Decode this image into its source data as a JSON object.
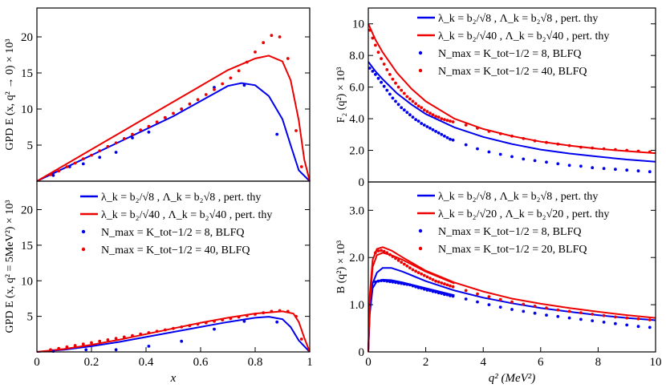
{
  "chart_data": [
    {
      "type": "line",
      "ylabel": "GPD E (x, q² → 0) × 10³",
      "xlabel": "",
      "xlim": [
        0,
        1
      ],
      "ylim": [
        0,
        24
      ],
      "yticks": [
        5,
        10,
        15,
        20
      ],
      "xticks": [],
      "series": [
        {
          "kind": "line",
          "color": "#0000ee",
          "x": [
            0,
            0.1,
            0.2,
            0.3,
            0.4,
            0.5,
            0.6,
            0.7,
            0.75,
            0.8,
            0.85,
            0.9,
            0.93,
            0.96,
            1.0
          ],
          "y": [
            0,
            1.8,
            3.6,
            5.4,
            7.2,
            9.0,
            11.1,
            13.2,
            13.6,
            13.3,
            11.8,
            8.6,
            5.0,
            1.5,
            0
          ]
        },
        {
          "kind": "line",
          "color": "#ee0000",
          "x": [
            0,
            0.1,
            0.2,
            0.3,
            0.4,
            0.5,
            0.6,
            0.7,
            0.8,
            0.85,
            0.9,
            0.93,
            0.96,
            0.98,
            1.0
          ],
          "y": [
            0,
            2.2,
            4.4,
            6.6,
            8.8,
            11.0,
            13.2,
            15.4,
            17.0,
            17.4,
            16.6,
            14.0,
            8.4,
            3.0,
            0
          ]
        },
        {
          "kind": "points",
          "color": "#0000ee",
          "x": [
            0.06,
            0.12,
            0.17,
            0.23,
            0.29,
            0.35,
            0.41,
            0.47,
            0.53,
            0.65,
            0.76,
            0.88
          ],
          "y": [
            0.8,
            2.0,
            2.4,
            3.3,
            4.0,
            6.0,
            6.8,
            8.8,
            10.0,
            13.0,
            13.3,
            6.5
          ]
        },
        {
          "kind": "points",
          "color": "#ee0000",
          "x": [
            0.05,
            0.08,
            0.11,
            0.14,
            0.17,
            0.2,
            0.23,
            0.26,
            0.29,
            0.32,
            0.35,
            0.38,
            0.41,
            0.44,
            0.47,
            0.5,
            0.53,
            0.56,
            0.59,
            0.62,
            0.65,
            0.68,
            0.71,
            0.74,
            0.77,
            0.8,
            0.83,
            0.86,
            0.89,
            0.92,
            0.95,
            0.97
          ],
          "y": [
            0.9,
            1.4,
            2.0,
            2.5,
            3.1,
            3.6,
            4.2,
            4.8,
            5.3,
            5.9,
            6.5,
            7.1,
            7.6,
            8.2,
            8.8,
            9.4,
            10.0,
            10.7,
            11.3,
            12.0,
            12.7,
            13.5,
            14.3,
            15.3,
            16.5,
            17.9,
            19.2,
            20.2,
            20.0,
            17.0,
            7.0,
            2.0
          ]
        }
      ]
    },
    {
      "type": "line",
      "ylabel": "GPD E (x, q² = 5MeV²) × 10³",
      "xlabel": "x",
      "xlim": [
        0,
        1
      ],
      "ylim": [
        0,
        24
      ],
      "yticks": [
        5,
        10,
        15,
        20
      ],
      "xticks": [
        "0",
        "0.2",
        "0.4",
        "0.6",
        "0.8",
        "1"
      ],
      "legend": [
        {
          "label": "λ_k = b₂/√8 , Λ_k = b₂√8 , pert. thy",
          "color": "#0000ee",
          "marker": "line"
        },
        {
          "label": "λ_k = b₂/√40 , Λ_k = b₂√40 , pert. thy",
          "color": "#ee0000",
          "marker": "line"
        },
        {
          "label": "N_max = K_tot−1/2 = 8, BLFQ",
          "color": "#0000ee",
          "marker": "dot"
        },
        {
          "label": "N_max = K_tot−1/2 = 40, BLFQ",
          "color": "#ee0000",
          "marker": "dot"
        }
      ],
      "series": [
        {
          "kind": "line",
          "color": "#0000ee",
          "x": [
            0,
            0.1,
            0.2,
            0.3,
            0.4,
            0.5,
            0.6,
            0.7,
            0.8,
            0.85,
            0.9,
            0.93,
            0.96,
            1.0
          ],
          "y": [
            0,
            0.3,
            0.8,
            1.4,
            2.1,
            2.8,
            3.5,
            4.2,
            4.8,
            4.95,
            4.6,
            3.5,
            1.6,
            0
          ]
        },
        {
          "kind": "line",
          "color": "#ee0000",
          "x": [
            0,
            0.1,
            0.2,
            0.3,
            0.4,
            0.5,
            0.6,
            0.7,
            0.8,
            0.9,
            0.94,
            0.96,
            0.98,
            1.0
          ],
          "y": [
            0,
            0.4,
            1.0,
            1.7,
            2.5,
            3.3,
            4.1,
            4.8,
            5.4,
            5.7,
            5.4,
            4.2,
            2.0,
            0
          ]
        },
        {
          "kind": "points",
          "color": "#0000ee",
          "x": [
            0.06,
            0.18,
            0.29,
            0.41,
            0.53,
            0.65,
            0.76,
            0.88
          ],
          "y": [
            0.1,
            0.3,
            0.3,
            0.8,
            1.5,
            3.2,
            4.3,
            4.2
          ]
        },
        {
          "kind": "points",
          "color": "#ee0000",
          "x": [
            0.05,
            0.08,
            0.11,
            0.14,
            0.17,
            0.2,
            0.23,
            0.26,
            0.29,
            0.32,
            0.35,
            0.38,
            0.41,
            0.44,
            0.47,
            0.5,
            0.53,
            0.56,
            0.59,
            0.62,
            0.65,
            0.68,
            0.71,
            0.74,
            0.77,
            0.8,
            0.83,
            0.86,
            0.89,
            0.92,
            0.95,
            0.97
          ],
          "y": [
            0.3,
            0.5,
            0.7,
            0.9,
            1.1,
            1.3,
            1.5,
            1.7,
            1.9,
            2.1,
            2.3,
            2.5,
            2.7,
            2.9,
            3.1,
            3.3,
            3.5,
            3.7,
            3.9,
            4.1,
            4.3,
            4.5,
            4.7,
            4.9,
            5.1,
            5.3,
            5.5,
            5.7,
            5.8,
            5.7,
            5.0,
            1.8
          ]
        }
      ]
    },
    {
      "type": "line",
      "ylabel": "F₂ (q²) × 10³",
      "xlabel": "",
      "xlim": [
        0,
        10
      ],
      "ylim": [
        0,
        11
      ],
      "yticks": [
        "0",
        "2.0",
        "4.0",
        "6.0",
        "8.0",
        "10"
      ],
      "xticks": [],
      "legend": [
        {
          "label": "λ_k = b₂/√8 , Λ_k = b₂√8 , pert. thy",
          "color": "#0000ee",
          "marker": "line"
        },
        {
          "label": "λ_k = b₂/√40 , Λ_k = b₂√40 , pert. thy",
          "color": "#ee0000",
          "marker": "line"
        },
        {
          "label": "N_max = K_tot−1/2 = 8, BLFQ",
          "color": "#0000ee",
          "marker": "dot"
        },
        {
          "label": "N_max = K_tot−1/2 = 40, BLFQ",
          "color": "#ee0000",
          "marker": "dot"
        }
      ],
      "series": [
        {
          "kind": "line",
          "color": "#0000ee",
          "x": [
            0,
            0.25,
            0.5,
            1,
            1.5,
            2,
            3,
            4,
            5,
            6,
            7,
            8,
            9,
            10
          ],
          "y": [
            7.6,
            7.0,
            6.5,
            5.6,
            4.9,
            4.3,
            3.45,
            2.85,
            2.4,
            2.05,
            1.8,
            1.6,
            1.42,
            1.28
          ]
        },
        {
          "kind": "line",
          "color": "#ee0000",
          "x": [
            0,
            0.25,
            0.5,
            1,
            1.5,
            2,
            3,
            4,
            5,
            6,
            7,
            8,
            9,
            10
          ],
          "y": [
            10.0,
            9.0,
            8.2,
            6.9,
            5.9,
            5.1,
            4.0,
            3.35,
            2.9,
            2.55,
            2.3,
            2.1,
            1.95,
            1.82
          ]
        },
        {
          "kind": "points",
          "color": "#0000ee",
          "x": [
            0.05,
            0.15,
            0.25,
            0.35,
            0.45,
            0.55,
            0.65,
            0.75,
            0.85,
            0.95,
            1.05,
            1.15,
            1.25,
            1.35,
            1.45,
            1.55,
            1.65,
            1.75,
            1.85,
            1.95,
            2.05,
            2.15,
            2.25,
            2.35,
            2.45,
            2.55,
            2.65,
            2.75,
            2.85,
            2.95,
            3.4,
            3.8,
            4.2,
            4.6,
            5.0,
            5.4,
            5.8,
            6.2,
            6.6,
            7.0,
            7.4,
            7.8,
            8.2,
            8.6,
            9.0,
            9.4,
            9.8
          ],
          "y": [
            7.2,
            7.0,
            6.8,
            6.55,
            6.3,
            6.05,
            5.8,
            5.55,
            5.3,
            5.1,
            4.9,
            4.7,
            4.55,
            4.4,
            4.25,
            4.1,
            3.95,
            3.85,
            3.7,
            3.6,
            3.5,
            3.4,
            3.3,
            3.2,
            3.1,
            3.0,
            2.9,
            2.8,
            2.7,
            2.65,
            2.35,
            2.1,
            1.9,
            1.75,
            1.6,
            1.45,
            1.35,
            1.25,
            1.15,
            1.05,
            1.0,
            0.9,
            0.85,
            0.8,
            0.75,
            0.7,
            0.65
          ]
        },
        {
          "kind": "points",
          "color": "#ee0000",
          "x": [
            0.05,
            0.15,
            0.25,
            0.35,
            0.45,
            0.55,
            0.65,
            0.75,
            0.85,
            0.95,
            1.05,
            1.15,
            1.25,
            1.35,
            1.45,
            1.55,
            1.65,
            1.75,
            1.85,
            1.95,
            2.05,
            2.15,
            2.25,
            2.35,
            2.45,
            2.55,
            2.65,
            2.75,
            2.85,
            2.95,
            3.4,
            3.8,
            4.2,
            4.6,
            5.0,
            5.4,
            5.8,
            6.2,
            6.6,
            7.0,
            7.4,
            7.8,
            8.2,
            8.6,
            9.0,
            9.4,
            9.8
          ],
          "y": [
            9.6,
            9.1,
            8.65,
            8.2,
            7.8,
            7.45,
            7.1,
            6.8,
            6.5,
            6.25,
            6.0,
            5.8,
            5.6,
            5.4,
            5.25,
            5.1,
            4.95,
            4.8,
            4.7,
            4.55,
            4.45,
            4.35,
            4.25,
            4.15,
            4.1,
            4.0,
            3.95,
            3.9,
            3.85,
            3.8,
            3.6,
            3.4,
            3.2,
            3.05,
            2.9,
            2.75,
            2.6,
            2.5,
            2.4,
            2.3,
            2.2,
            2.15,
            2.1,
            2.05,
            2.0,
            1.95,
            1.9
          ]
        }
      ]
    },
    {
      "type": "line",
      "ylabel": "B (q²) × 10³",
      "xlabel": "q² (MeV²)",
      "xlim": [
        0,
        10
      ],
      "ylim": [
        0,
        3.6
      ],
      "yticks": [
        "0",
        "1.0",
        "2.0",
        "3.0"
      ],
      "xticks": [
        "0",
        "2",
        "4",
        "6",
        "8",
        "10"
      ],
      "legend": [
        {
          "label": "λ_k = b₂/√8 , Λ_k = b₂√8 , pert. thy",
          "color": "#0000ee",
          "marker": "line"
        },
        {
          "label": "λ_k = b₂/√20 , Λ_k = b₂√20 , pert. thy",
          "color": "#ee0000",
          "marker": "line"
        },
        {
          "label": "N_max = K_tot−1/2 = 8, BLFQ",
          "color": "#0000ee",
          "marker": "dot"
        },
        {
          "label": "N_max = K_tot−1/2 = 20, BLFQ",
          "color": "#ee0000",
          "marker": "dot"
        }
      ],
      "series": [
        {
          "kind": "line",
          "color": "#0000ee",
          "x": [
            0,
            0.05,
            0.15,
            0.3,
            0.5,
            0.8,
            1.2,
            2,
            3,
            4,
            5,
            6,
            7,
            8,
            9,
            10
          ],
          "y": [
            0,
            0.9,
            1.45,
            1.68,
            1.78,
            1.78,
            1.7,
            1.5,
            1.3,
            1.15,
            1.03,
            0.93,
            0.85,
            0.78,
            0.72,
            0.67
          ]
        },
        {
          "kind": "line",
          "color": "#ee0000",
          "x": [
            0,
            0.05,
            0.15,
            0.3,
            0.5,
            0.8,
            1.2,
            2,
            3,
            4,
            5,
            6,
            7,
            8,
            9,
            10
          ],
          "y": [
            0,
            1.2,
            1.95,
            2.18,
            2.22,
            2.15,
            2.0,
            1.72,
            1.47,
            1.28,
            1.13,
            1.02,
            0.93,
            0.85,
            0.78,
            0.72
          ]
        },
        {
          "kind": "line",
          "color": "#0000ee",
          "x": [
            0,
            0.05,
            0.15,
            0.3,
            0.5,
            0.8,
            1.2,
            2,
            3
          ],
          "y": [
            0,
            0.8,
            1.35,
            1.5,
            1.53,
            1.52,
            1.47,
            1.35,
            1.2
          ]
        },
        {
          "kind": "line",
          "color": "#ee0000",
          "x": [
            0,
            0.05,
            0.15,
            0.3,
            0.5,
            0.8,
            1.2,
            2,
            3
          ],
          "y": [
            0,
            1.0,
            1.8,
            2.05,
            2.1,
            2.05,
            1.95,
            1.7,
            1.45
          ]
        },
        {
          "kind": "points",
          "color": "#0000ee",
          "x": [
            0.25,
            0.35,
            0.45,
            0.55,
            0.65,
            0.75,
            0.85,
            0.95,
            1.05,
            1.15,
            1.25,
            1.35,
            1.45,
            1.55,
            1.65,
            1.75,
            1.85,
            1.95,
            2.05,
            2.15,
            2.25,
            2.35,
            2.45,
            2.55,
            2.65,
            2.75,
            2.85,
            2.95,
            3.4,
            3.8,
            4.2,
            4.6,
            5.0,
            5.4,
            5.8,
            6.2,
            6.6,
            7.0,
            7.4,
            7.8,
            8.2,
            8.6,
            9.0,
            9.4,
            9.8
          ],
          "y": [
            1.48,
            1.5,
            1.51,
            1.51,
            1.5,
            1.49,
            1.48,
            1.47,
            1.46,
            1.45,
            1.44,
            1.43,
            1.42,
            1.4,
            1.38,
            1.36,
            1.35,
            1.33,
            1.31,
            1.3,
            1.28,
            1.27,
            1.25,
            1.24,
            1.22,
            1.21,
            1.19,
            1.18,
            1.12,
            1.06,
            1.0,
            0.95,
            0.9,
            0.86,
            0.82,
            0.78,
            0.75,
            0.72,
            0.69,
            0.66,
            0.63,
            0.6,
            0.57,
            0.54,
            0.52
          ]
        },
        {
          "kind": "points",
          "color": "#ee0000",
          "x": [
            0.25,
            0.35,
            0.45,
            0.55,
            0.65,
            0.75,
            0.85,
            0.95,
            1.05,
            1.15,
            1.25,
            1.35,
            1.45,
            1.55,
            1.65,
            1.75,
            1.85,
            1.95,
            2.05,
            2.15,
            2.25,
            2.35,
            2.45,
            2.55,
            2.65,
            2.75,
            2.85,
            2.95,
            3.4,
            3.8,
            4.2,
            4.6,
            5.0,
            5.4,
            5.8,
            6.2,
            6.6,
            7.0,
            7.4,
            7.8,
            8.2,
            8.6,
            9.0,
            9.4,
            9.8
          ],
          "y": [
            2.1,
            2.14,
            2.15,
            2.13,
            2.1,
            2.06,
            2.02,
            1.98,
            1.94,
            1.9,
            1.86,
            1.82,
            1.78,
            1.74,
            1.71,
            1.68,
            1.65,
            1.62,
            1.59,
            1.56,
            1.53,
            1.5,
            1.48,
            1.46,
            1.44,
            1.42,
            1.4,
            1.38,
            1.3,
            1.23,
            1.17,
            1.11,
            1.06,
            1.01,
            0.97,
            0.93,
            0.89,
            0.86,
            0.83,
            0.8,
            0.77,
            0.74,
            0.72,
            0.7,
            0.68
          ]
        }
      ]
    }
  ]
}
